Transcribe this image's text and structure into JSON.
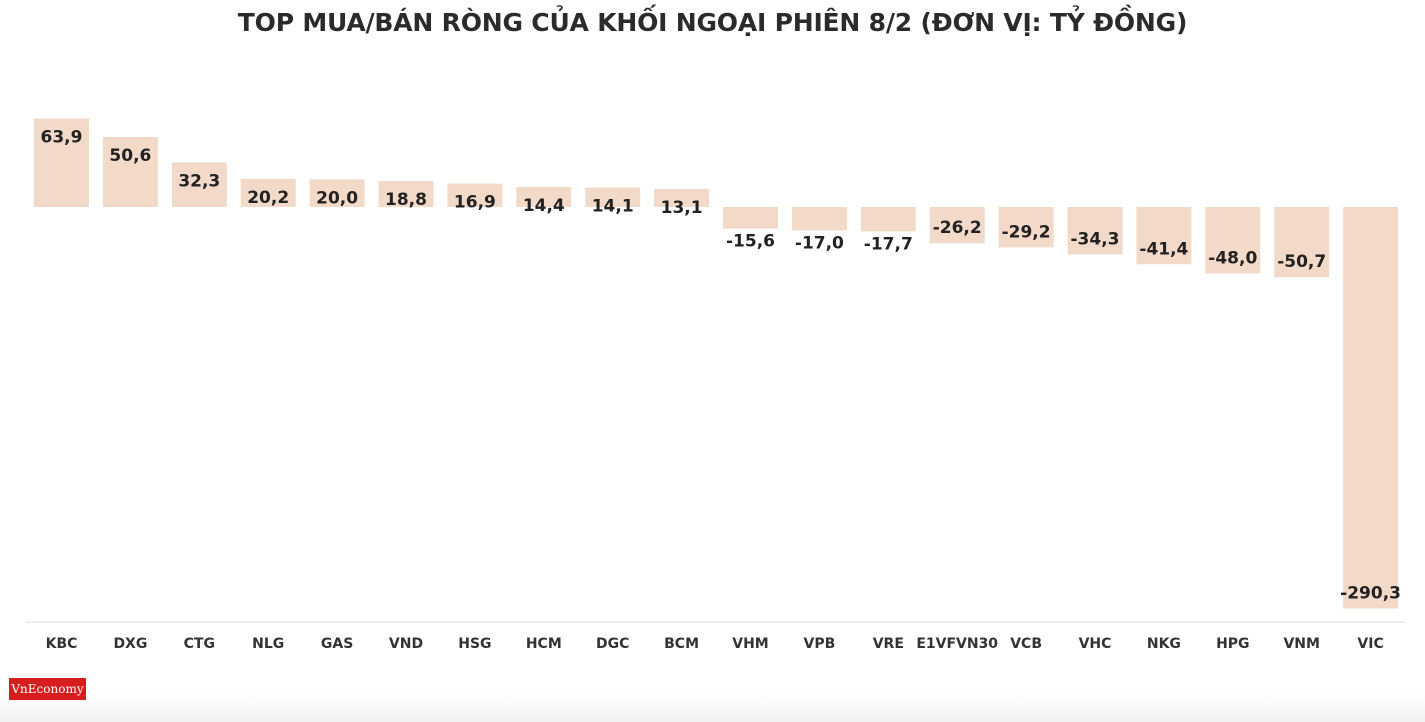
{
  "title": "TOP MUA/BÁN RÒNG CỦA KHỐI NGOẠI PHIÊN 8/2 (ĐƠN VỊ: TỶ ĐỒNG)",
  "logo_text": "VnEconomy",
  "bar_color": "#f3d9c8",
  "chart_data": {
    "type": "bar",
    "title": "TOP MUA/BÁN RÒNG CỦA KHỐI NGOẠI PHIÊN 8/2 (ĐƠN VỊ: TỶ ĐỒNG)",
    "xlabel": "",
    "ylabel": "",
    "grid": false,
    "categories": [
      "KBC",
      "DXG",
      "CTG",
      "NLG",
      "GAS",
      "VND",
      "HSG",
      "HCM",
      "DGC",
      "BCM",
      "VHM",
      "VPB",
      "VRE",
      "E1VFVN30",
      "VCB",
      "VHC",
      "NKG",
      "HPG",
      "VNM",
      "VIC"
    ],
    "values": [
      63.9,
      50.6,
      32.3,
      20.2,
      20.0,
      18.8,
      16.9,
      14.4,
      14.1,
      13.1,
      -15.6,
      -17.0,
      -17.7,
      -26.2,
      -29.2,
      -34.3,
      -41.4,
      -48.0,
      -50.7,
      -290.3
    ],
    "labels": [
      "63,9",
      "50,6",
      "32,3",
      "20,2",
      "20,0",
      "18,8",
      "16,9",
      "14,4",
      "14,1",
      "13,1",
      "-15,6",
      "-17,0",
      "-17,7",
      "-26,2",
      "-29,2",
      "-34,3",
      "-41,4",
      "-48,0",
      "-50,7",
      "-290,3"
    ]
  }
}
